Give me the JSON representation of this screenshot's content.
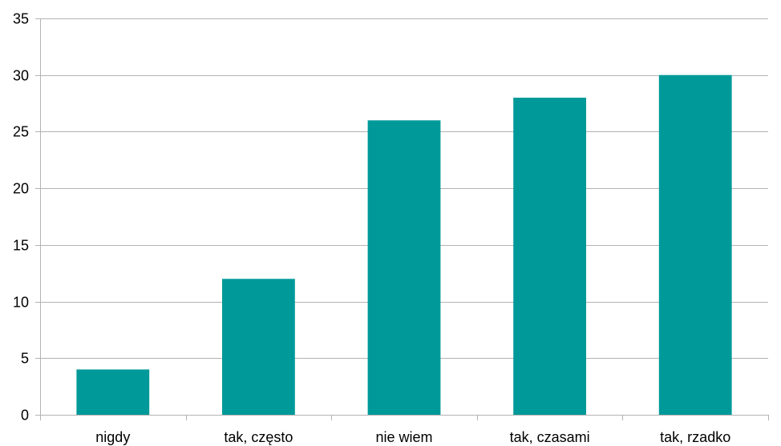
{
  "chart_data": {
    "type": "bar",
    "categories": [
      "nigdy",
      "tak, często",
      "nie wiem",
      "tak, czasami",
      "tak, rzadko"
    ],
    "values": [
      4,
      12,
      26,
      28,
      30
    ],
    "ylim": [
      0,
      35
    ],
    "yticks": [
      "0",
      "5",
      "10",
      "15",
      "20",
      "25",
      "30",
      "35"
    ],
    "title": "",
    "xlabel": "",
    "ylabel": "",
    "grid": true,
    "legend": "none",
    "bar_color": "#009999",
    "grid_color": "#b3b3b3",
    "axis_color": "#b3b3b3"
  }
}
